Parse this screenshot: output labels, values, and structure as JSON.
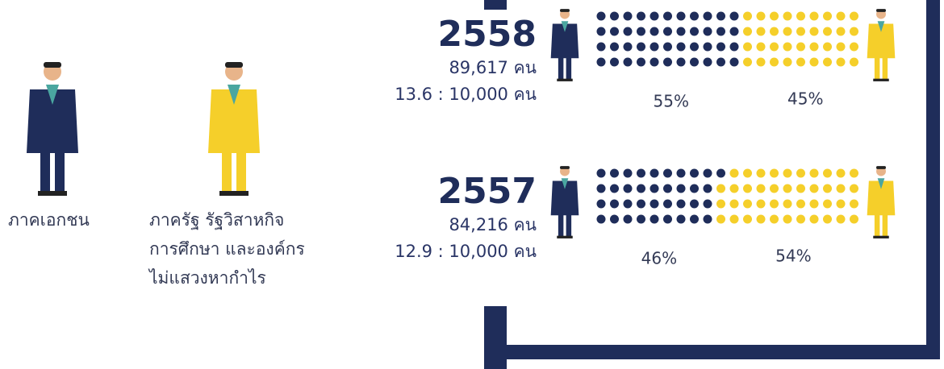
{
  "legend": {
    "private": "ภาคเอกชน",
    "public": [
      "ภาครัฐ รัฐวิสาหกิจ",
      "การศึกษา และองค์กร",
      "ไม่แสวงหากำไร"
    ]
  },
  "years": [
    {
      "year": "2558",
      "people": "89,617 คน",
      "ratio": "13.6 : 10,000 คน",
      "private_pct": {
        "value": 55,
        "label": "55%"
      },
      "public_pct": {
        "value": 45,
        "label": "45%"
      }
    },
    {
      "year": "2557",
      "people": "84,216 คน",
      "ratio": "12.9 : 10,000 คน",
      "private_pct": {
        "value": 46,
        "label": "46%"
      },
      "public_pct": {
        "value": 54,
        "label": "54%"
      }
    }
  ]
}
